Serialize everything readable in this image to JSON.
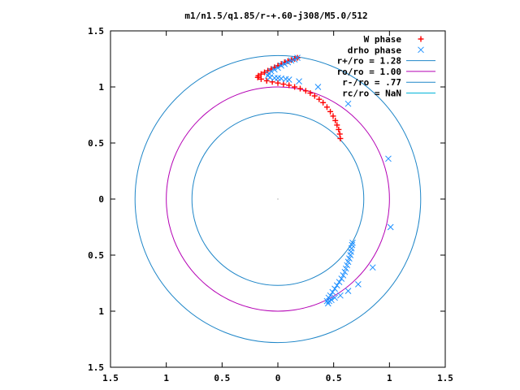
{
  "chart_data": {
    "type": "scatter",
    "title": "m1/n1.5/q1.85/r-+.60-j308/M5.0/512",
    "xlim": [
      -1.5,
      1.5
    ],
    "ylim": [
      -1.5,
      1.5
    ],
    "x_ticks": [
      {
        "value": -1.5,
        "label": "1.5"
      },
      {
        "value": -1.0,
        "label": "1"
      },
      {
        "value": -0.5,
        "label": "0.5"
      },
      {
        "value": 0.0,
        "label": "0"
      },
      {
        "value": 0.5,
        "label": "0.5"
      },
      {
        "value": 1.0,
        "label": "1"
      },
      {
        "value": 1.5,
        "label": "1.5"
      }
    ],
    "y_ticks": [
      {
        "value": 1.5,
        "label": "1.5"
      },
      {
        "value": 1.0,
        "label": "1"
      },
      {
        "value": 0.5,
        "label": "0.5"
      },
      {
        "value": 0.0,
        "label": "0"
      },
      {
        "value": -0.5,
        "label": "0.5"
      },
      {
        "value": -1.0,
        "label": "1"
      },
      {
        "value": -1.5,
        "label": "1.5"
      }
    ],
    "grid": false,
    "legend_position": "top-right",
    "series": [
      {
        "name": "W phase",
        "kind": "plus",
        "color": "#ff0000",
        "points": [
          [
            0.56,
            0.54
          ],
          [
            0.555,
            0.58
          ],
          [
            0.545,
            0.62
          ],
          [
            0.53,
            0.66
          ],
          [
            0.515,
            0.7
          ],
          [
            0.495,
            0.74
          ],
          [
            0.47,
            0.78
          ],
          [
            0.44,
            0.82
          ],
          [
            0.405,
            0.86
          ],
          [
            0.37,
            0.89
          ],
          [
            0.33,
            0.92
          ],
          [
            0.29,
            0.945
          ],
          [
            0.25,
            0.965
          ],
          [
            0.2,
            0.985
          ],
          [
            0.15,
            1.0
          ],
          [
            0.1,
            1.015
          ],
          [
            0.05,
            1.025
          ],
          [
            0.0,
            1.035
          ],
          [
            -0.05,
            1.045
          ],
          [
            -0.1,
            1.055
          ],
          [
            -0.15,
            1.07
          ],
          [
            -0.18,
            1.085
          ],
          [
            -0.175,
            1.1
          ],
          [
            -0.15,
            1.115
          ],
          [
            -0.12,
            1.13
          ],
          [
            -0.09,
            1.145
          ],
          [
            -0.06,
            1.16
          ],
          [
            -0.03,
            1.175
          ],
          [
            0.0,
            1.19
          ],
          [
            0.03,
            1.205
          ],
          [
            0.06,
            1.22
          ],
          [
            0.09,
            1.23
          ],
          [
            0.12,
            1.24
          ],
          [
            0.15,
            1.25
          ],
          [
            0.175,
            1.26
          ]
        ]
      },
      {
        "name": "drho phase",
        "kind": "cross",
        "color": "#1e90ff",
        "points": [
          [
            0.175,
            1.26
          ],
          [
            0.15,
            1.245
          ],
          [
            0.12,
            1.235
          ],
          [
            0.09,
            1.22
          ],
          [
            0.06,
            1.205
          ],
          [
            0.03,
            1.19
          ],
          [
            0.0,
            1.17
          ],
          [
            -0.03,
            1.155
          ],
          [
            -0.06,
            1.14
          ],
          [
            -0.08,
            1.12
          ],
          [
            -0.09,
            1.1
          ],
          [
            -0.07,
            1.085
          ],
          [
            -0.03,
            1.08
          ],
          [
            0.0,
            1.08
          ],
          [
            0.03,
            1.075
          ],
          [
            0.07,
            1.07
          ],
          [
            0.1,
            1.065
          ],
          [
            0.19,
            1.05
          ],
          [
            0.36,
            1.0
          ],
          [
            0.63,
            0.85
          ],
          [
            0.99,
            0.36
          ],
          [
            1.01,
            -0.25
          ],
          [
            0.85,
            -0.61
          ],
          [
            0.72,
            -0.76
          ],
          [
            0.63,
            -0.82
          ],
          [
            0.56,
            -0.86
          ],
          [
            0.51,
            -0.88
          ],
          [
            0.48,
            -0.9
          ],
          [
            0.46,
            -0.91
          ],
          [
            0.45,
            -0.93
          ],
          [
            0.44,
            -0.91
          ],
          [
            0.455,
            -0.88
          ],
          [
            0.47,
            -0.86
          ],
          [
            0.49,
            -0.83
          ],
          [
            0.51,
            -0.8
          ],
          [
            0.53,
            -0.77
          ],
          [
            0.55,
            -0.74
          ],
          [
            0.57,
            -0.71
          ],
          [
            0.585,
            -0.68
          ],
          [
            0.6,
            -0.65
          ],
          [
            0.61,
            -0.62
          ],
          [
            0.62,
            -0.59
          ],
          [
            0.63,
            -0.56
          ],
          [
            0.64,
            -0.53
          ],
          [
            0.65,
            -0.5
          ],
          [
            0.655,
            -0.47
          ],
          [
            0.66,
            -0.44
          ],
          [
            0.665,
            -0.41
          ],
          [
            0.67,
            -0.39
          ]
        ]
      },
      {
        "name": "r+/ro = 1.28",
        "kind": "circle",
        "radius": 1.28,
        "color": "#1f86c8"
      },
      {
        "name": "ro/ro = 1.00",
        "kind": "circle",
        "radius": 1.0,
        "color": "#b400b4"
      },
      {
        "name": "r-/ro = .77",
        "kind": "circle",
        "radius": 0.77,
        "color": "#1f86c8"
      },
      {
        "name": "rc/ro = NaN",
        "kind": "circle",
        "radius": null,
        "color": "#00b4d8"
      }
    ]
  }
}
